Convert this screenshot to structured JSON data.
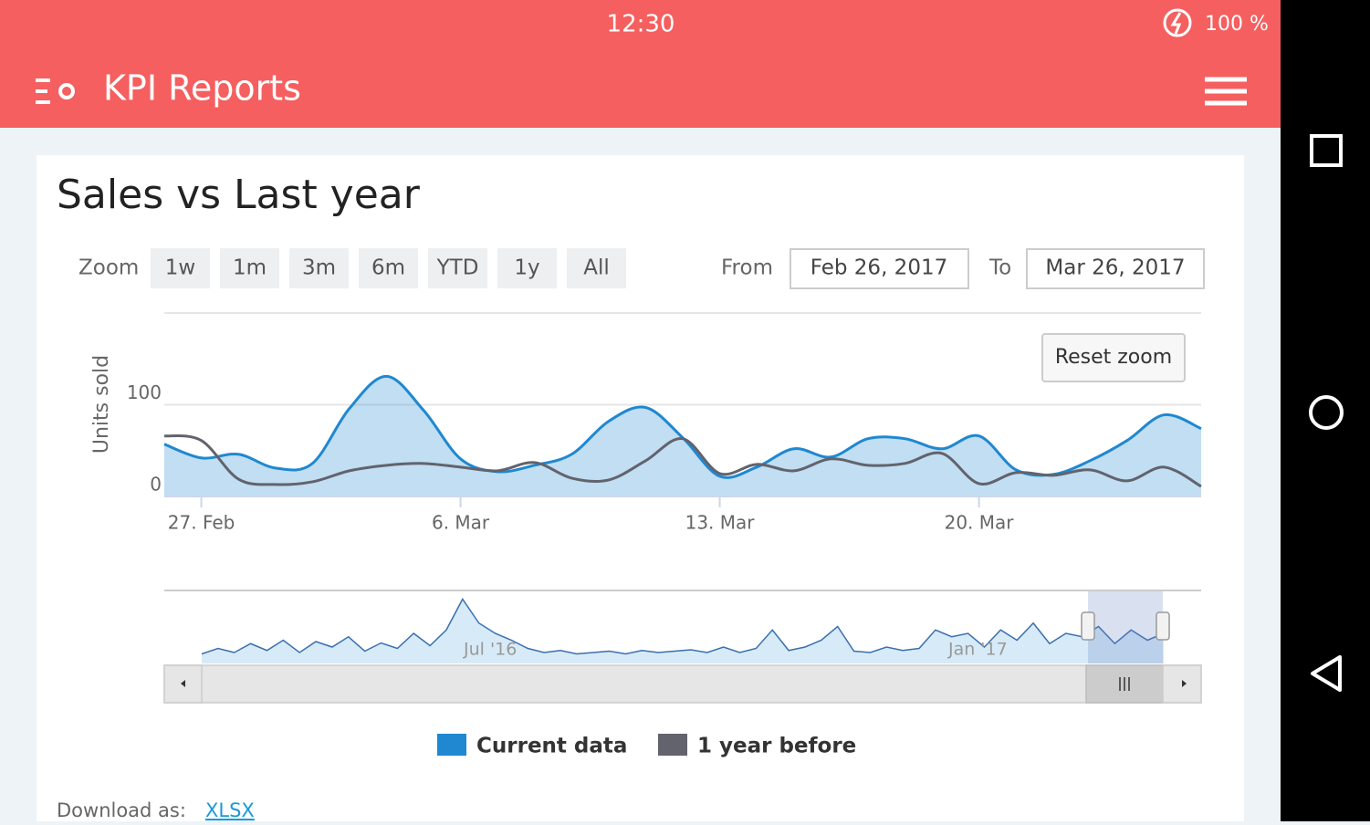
{
  "status_bar": {
    "time": "12:30",
    "battery": "100 %"
  },
  "app_bar": {
    "title": "KPI Reports"
  },
  "range_selector": {
    "zoom_label": "Zoom",
    "buttons": [
      "1w",
      "1m",
      "3m",
      "6m",
      "YTD",
      "1y",
      "All"
    ],
    "from_label": "From",
    "from": "Feb 26, 2017",
    "to_label": "To",
    "to": "Mar 26, 2017"
  },
  "reset_zoom": "Reset zoom",
  "download": {
    "label": "Download as:",
    "link": "XLSX"
  },
  "chart_data": {
    "type": "line",
    "title": "Sales vs Last year",
    "y_label": "Units sold",
    "x": [
      0,
      1,
      2,
      3,
      4,
      5,
      6,
      7,
      8,
      9,
      10,
      11,
      12,
      13,
      14,
      15,
      16,
      17,
      18,
      19,
      20,
      21,
      22,
      23,
      24,
      25,
      26,
      27,
      28
    ],
    "xlim": [
      0,
      28
    ],
    "xticks": [
      {
        "value": 1,
        "label": "27. Feb"
      },
      {
        "value": 8,
        "label": "6. Mar"
      },
      {
        "value": 15,
        "label": "13. Mar"
      },
      {
        "value": 22,
        "label": "20. Mar"
      }
    ],
    "ylim": [
      0,
      200
    ],
    "yticks": [
      0,
      100
    ],
    "grid": true,
    "series": [
      {
        "name": "Current data",
        "color": "#1f88d0",
        "area": true,
        "values": [
          57,
          42,
          46,
          31,
          36,
          96,
          131,
          94,
          41,
          27,
          34,
          46,
          82,
          97,
          64,
          22,
          32,
          52,
          43,
          63,
          63,
          52,
          66,
          29,
          24,
          39,
          61,
          89,
          74
        ]
      },
      {
        "name": "1 year before",
        "color": "#62636d",
        "values": [
          66,
          61,
          19,
          13,
          16,
          28,
          34,
          36,
          32,
          28,
          37,
          20,
          18,
          39,
          63,
          25,
          35,
          28,
          41,
          34,
          36,
          47,
          14,
          26,
          23,
          29,
          17,
          32,
          11
        ]
      }
    ],
    "navigator": {
      "ylim": [
        0,
        100
      ],
      "values": [
        10,
        18,
        12,
        25,
        15,
        30,
        12,
        28,
        20,
        35,
        14,
        26,
        18,
        40,
        22,
        45,
        90,
        55,
        40,
        30,
        18,
        12,
        15,
        10,
        12,
        14,
        10,
        15,
        12,
        14,
        16,
        12,
        20,
        12,
        18,
        45,
        15,
        20,
        30,
        50,
        14,
        12,
        20,
        15,
        18,
        45,
        35,
        40,
        20,
        45,
        30,
        55,
        25,
        40,
        35,
        50,
        25,
        45,
        30,
        40
      ],
      "xticks": [
        {
          "value": 17.7,
          "label": "Jul '16"
        },
        {
          "value": 47.6,
          "label": "Jan '17"
        }
      ]
    }
  }
}
